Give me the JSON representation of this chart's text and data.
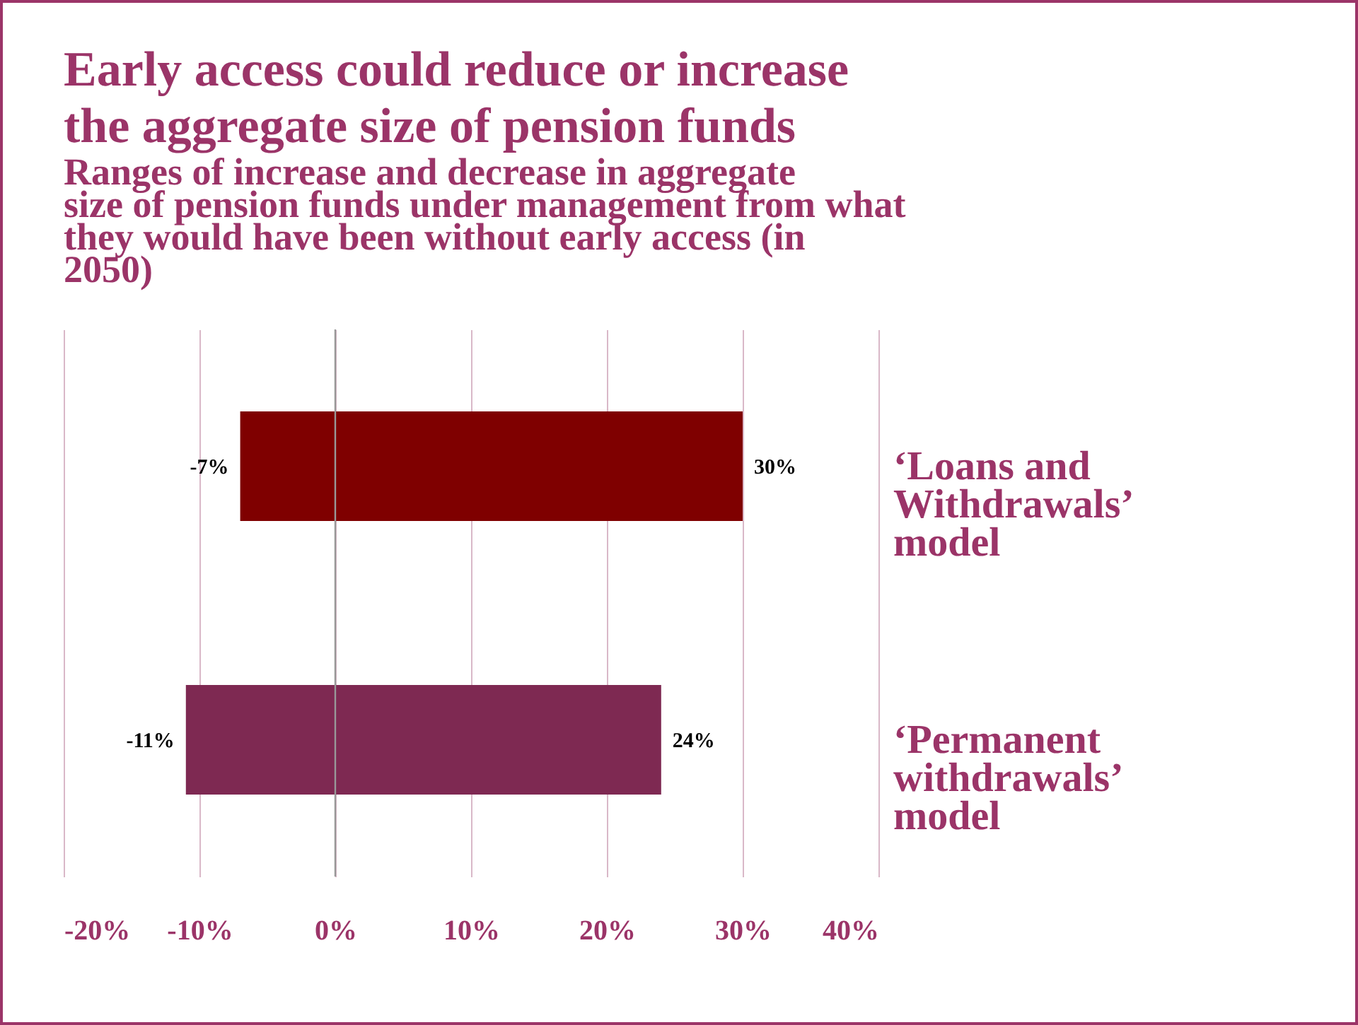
{
  "chart_data": {
    "type": "bar",
    "orientation": "horizontal",
    "title": "Early access could reduce or increase the aggregate size of pension funds",
    "subtitle": "Ranges of increase and decrease in aggregate size of pension funds under management from what they would have been without early access (in 2050)",
    "categories": [
      "‘Loans and Withdrawals’ model",
      "‘Permanent withdrawals’ model"
    ],
    "base": [
      -7,
      -11
    ],
    "values": [
      37,
      35
    ],
    "colors": [
      "#7f0000",
      "#7e2952"
    ],
    "xlim": [
      -20,
      40
    ],
    "xticks": [
      {
        "value": -20,
        "label": "-20%"
      },
      {
        "value": -10,
        "label": "-10%"
      },
      {
        "value": 0,
        "label": "0%"
      },
      {
        "value": 10,
        "label": "10%"
      },
      {
        "value": 20,
        "label": "20%"
      },
      {
        "value": 30,
        "label": "30%"
      },
      {
        "value": 40,
        "label": "40%"
      }
    ],
    "grid": "x",
    "ref_lines": [
      {
        "axis": "x",
        "value": 0,
        "color": "#999999"
      }
    ],
    "annotations": [
      {
        "text": "-7%",
        "x": -7,
        "y": "‘Loans and Withdrawals’ model"
      },
      {
        "text": "30%",
        "x": 30,
        "y": "‘Loans and Withdrawals’ model"
      },
      {
        "text": "-11%",
        "x": -11,
        "y": "‘Permanent withdrawals’ model"
      },
      {
        "text": "24%",
        "x": 24,
        "y": "‘Permanent withdrawals’ model"
      }
    ]
  }
}
